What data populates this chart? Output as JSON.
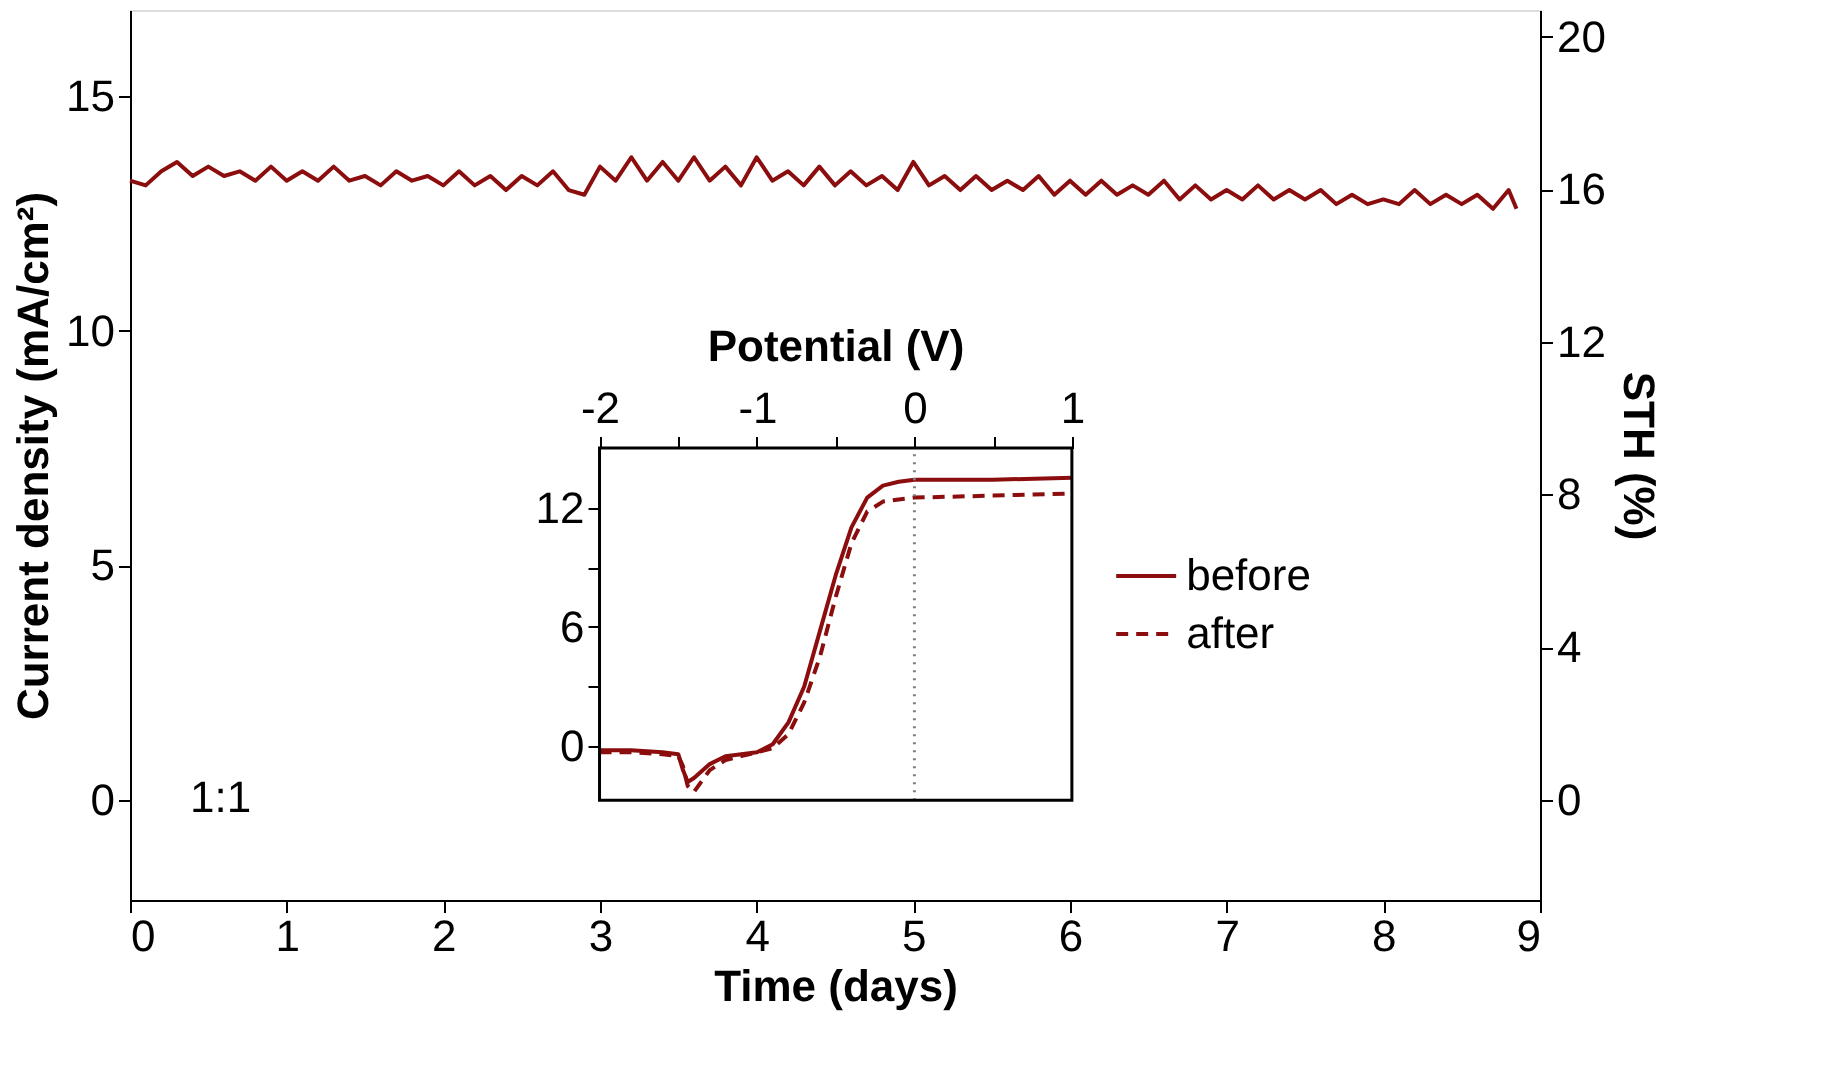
{
  "chart_data": [
    {
      "type": "line",
      "xlabel": "Time (days)",
      "ylabel": "Current density (mA/cm²)",
      "y2label": "STH (%)",
      "x": [
        0.0,
        0.1,
        0.2,
        0.3,
        0.4,
        0.5,
        0.6,
        0.7,
        0.8,
        0.9,
        1.0,
        1.1,
        1.2,
        1.3,
        1.4,
        1.5,
        1.6,
        1.7,
        1.8,
        1.9,
        2.0,
        2.1,
        2.2,
        2.3,
        2.4,
        2.5,
        2.6,
        2.7,
        2.8,
        2.9,
        3.0,
        3.1,
        3.2,
        3.3,
        3.4,
        3.5,
        3.6,
        3.7,
        3.8,
        3.9,
        4.0,
        4.1,
        4.2,
        4.3,
        4.4,
        4.5,
        4.6,
        4.7,
        4.8,
        4.9,
        5.0,
        5.1,
        5.2,
        5.3,
        5.4,
        5.5,
        5.6,
        5.7,
        5.8,
        5.9,
        6.0,
        6.1,
        6.2,
        6.3,
        6.4,
        6.5,
        6.6,
        6.7,
        6.8,
        6.9,
        7.0,
        7.1,
        7.2,
        7.3,
        7.4,
        7.5,
        7.6,
        7.7,
        7.8,
        7.9,
        8.0,
        8.1,
        8.2,
        8.3,
        8.4,
        8.5,
        8.6,
        8.7,
        8.8,
        8.85
      ],
      "series": [
        {
          "color": "#8b0d0d",
          "values": [
            13.2,
            13.1,
            13.4,
            13.6,
            13.3,
            13.5,
            13.3,
            13.4,
            13.2,
            13.5,
            13.2,
            13.4,
            13.2,
            13.5,
            13.2,
            13.3,
            13.1,
            13.4,
            13.2,
            13.3,
            13.1,
            13.4,
            13.1,
            13.3,
            13.0,
            13.3,
            13.1,
            13.4,
            13.0,
            12.9,
            13.5,
            13.2,
            13.7,
            13.2,
            13.6,
            13.2,
            13.7,
            13.2,
            13.5,
            13.1,
            13.7,
            13.2,
            13.4,
            13.1,
            13.5,
            13.1,
            13.4,
            13.1,
            13.3,
            13.0,
            13.6,
            13.1,
            13.3,
            13.0,
            13.3,
            13.0,
            13.2,
            13.0,
            13.3,
            12.9,
            13.2,
            12.9,
            13.2,
            12.9,
            13.1,
            12.9,
            13.2,
            12.8,
            13.1,
            12.8,
            13.0,
            12.8,
            13.1,
            12.8,
            13.0,
            12.8,
            13.0,
            12.7,
            12.9,
            12.7,
            12.8,
            12.7,
            13.0,
            12.7,
            12.9,
            12.7,
            12.9,
            12.6,
            13.0,
            12.6
          ]
        }
      ],
      "xlim": [
        0,
        9
      ],
      "xticks": [
        0,
        1,
        2,
        3,
        4,
        5,
        6,
        7,
        8,
        9
      ],
      "ylim": [
        -2.14,
        16.84
      ],
      "yticks": [
        0,
        5,
        10,
        15
      ],
      "y2lim": [
        -2.63,
        20.7
      ],
      "y2ticks": [
        0,
        4,
        8,
        12,
        16,
        20
      ],
      "annotations": [
        "1:1"
      ],
      "grid": false,
      "legend": false,
      "line_style": "solid",
      "marker": "none"
    },
    {
      "type": "line",
      "xlabel": "Potential (V)",
      "series": [
        {
          "name": "before",
          "color": "#8b0d0d",
          "line_style": "solid",
          "x": [
            -2,
            -1.8,
            -1.6,
            -1.5,
            -1.47,
            -1.44,
            -1.4,
            -1.3,
            -1.2,
            -1.1,
            -1.0,
            -0.9,
            -0.8,
            -0.7,
            -0.6,
            -0.5,
            -0.4,
            -0.3,
            -0.2,
            -0.1,
            0,
            0.5,
            1
          ],
          "values": [
            -0.2,
            -0.2,
            -0.3,
            -0.4,
            -1.2,
            -1.8,
            -1.6,
            -0.9,
            -0.5,
            -0.4,
            -0.3,
            0.1,
            1.2,
            3.0,
            5.8,
            8.6,
            11.0,
            12.5,
            13.1,
            13.3,
            13.4,
            13.4,
            13.5
          ]
        },
        {
          "name": "after",
          "color": "#8b0d0d",
          "line_style": "dashed",
          "x": [
            -2,
            -1.8,
            -1.6,
            -1.5,
            -1.47,
            -1.44,
            -1.4,
            -1.3,
            -1.2,
            -1.1,
            -1.0,
            -0.9,
            -0.8,
            -0.7,
            -0.6,
            -0.5,
            -0.4,
            -0.3,
            -0.2,
            -0.1,
            0,
            0.5,
            1
          ],
          "values": [
            -0.3,
            -0.3,
            -0.4,
            -0.5,
            -1.0,
            -2.0,
            -2.3,
            -1.2,
            -0.7,
            -0.5,
            -0.3,
            -0.1,
            0.6,
            2.2,
            4.5,
            7.5,
            10.2,
            11.8,
            12.3,
            12.4,
            12.5,
            12.6,
            12.7
          ]
        }
      ],
      "xlim": [
        -2,
        1
      ],
      "xticks": [
        -2,
        {
          "value": -1.5,
          "label": null
        },
        -1,
        {
          "value": -0.5,
          "label": null
        },
        0,
        {
          "value": 0.5,
          "label": null
        },
        1
      ],
      "ylim": [
        -2.72,
        15.0
      ],
      "yticks": [
        0,
        {
          "value": 3,
          "label": null
        },
        6,
        {
          "value": 9,
          "label": null
        },
        12
      ],
      "ref_lines": [
        {
          "axis": "x",
          "value": 0,
          "color": "#808080",
          "line_style": "dotted"
        }
      ],
      "legend": "right",
      "grid": false,
      "marker": "none"
    }
  ]
}
